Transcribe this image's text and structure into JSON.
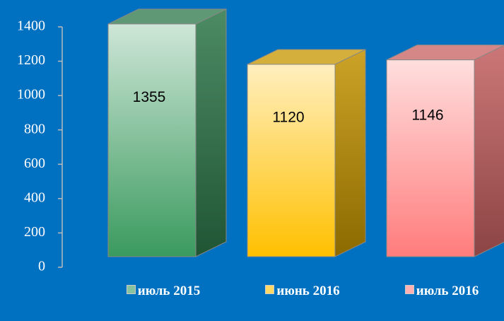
{
  "chart_data": {
    "type": "bar3d",
    "categories": [
      "июль 2015",
      "июнь 2016",
      "июль 2016"
    ],
    "values": [
      1355,
      1120,
      1146
    ],
    "colors": [
      "#3a9a5e",
      "#ffc000",
      "#ff7c7c"
    ],
    "ylim": [
      0,
      1400
    ],
    "yticks": [
      0,
      200,
      400,
      600,
      800,
      1000,
      1200,
      1400
    ]
  }
}
